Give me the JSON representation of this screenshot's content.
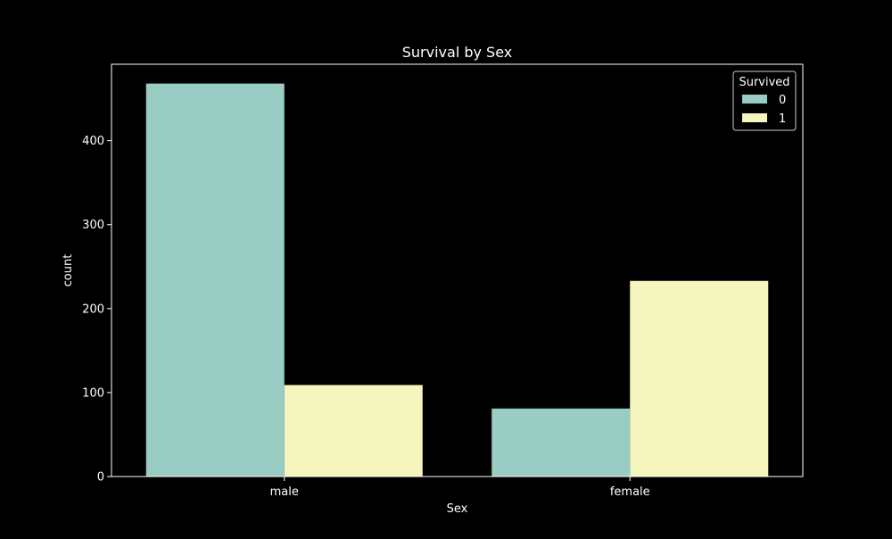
{
  "chart_data": {
    "type": "bar",
    "title": "Survival by Sex",
    "xlabel": "Sex",
    "ylabel": "count",
    "categories": [
      "male",
      "female"
    ],
    "series": [
      {
        "name": "0",
        "values": [
          468,
          81
        ],
        "color": "#99cdc3"
      },
      {
        "name": "1",
        "values": [
          109,
          233
        ],
        "color": "#f5f5be"
      }
    ],
    "ylim": [
      0,
      491
    ],
    "yticks": [
      0,
      100,
      200,
      300,
      400
    ],
    "legend": {
      "title": "Survived",
      "position": "top-right"
    },
    "grid": false,
    "colors": {
      "background": "#000000",
      "axis": "#ffffff",
      "text": "#ffffff"
    }
  }
}
